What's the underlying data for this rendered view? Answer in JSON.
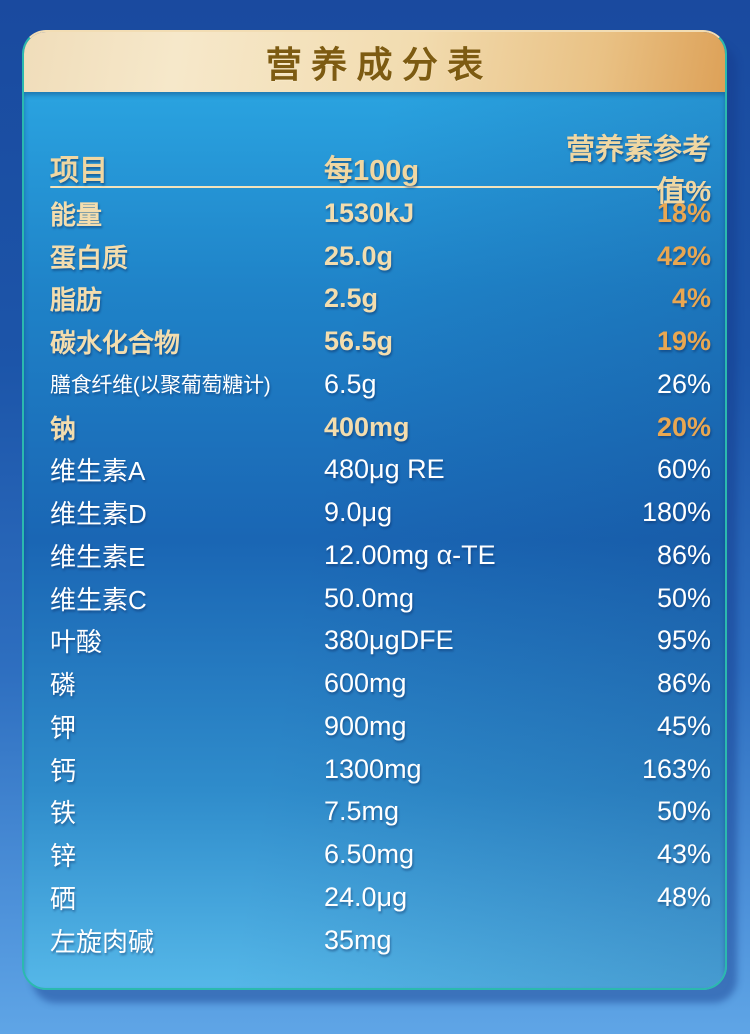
{
  "title": "营养成分表",
  "table": {
    "headers": [
      "项目",
      "每100g",
      "营养素参考值%"
    ],
    "rows": [
      {
        "name": "能量",
        "value": "1530kJ",
        "nrv": "18%",
        "highlight": true
      },
      {
        "name": "蛋白质",
        "value": "25.0g",
        "nrv": "42%",
        "highlight": true
      },
      {
        "name": "脂肪",
        "value": "2.5g",
        "nrv": "4%",
        "highlight": true
      },
      {
        "name": "碳水化合物",
        "value": "56.5g",
        "nrv": "19%",
        "highlight": true
      },
      {
        "name": "膳食纤维(以聚葡萄糖计)",
        "value": "6.5g",
        "nrv": "26%",
        "highlight": false
      },
      {
        "name": "钠",
        "value": "400mg",
        "nrv": "20%",
        "highlight": true
      },
      {
        "name": "维生素A",
        "value": "480μg RE",
        "nrv": "60%",
        "highlight": false
      },
      {
        "name": "维生素D",
        "value": "9.0μg",
        "nrv": "180%",
        "highlight": false
      },
      {
        "name": "维生素E",
        "value": "12.00mg α-TE",
        "nrv": "86%",
        "highlight": false
      },
      {
        "name": "维生素C",
        "value": "50.0mg",
        "nrv": "50%",
        "highlight": false
      },
      {
        "name": "叶酸",
        "value": "380μgDFE",
        "nrv": "95%",
        "highlight": false
      },
      {
        "name": "磷",
        "value": "600mg",
        "nrv": "86%",
        "highlight": false
      },
      {
        "name": "钾",
        "value": "900mg",
        "nrv": "45%",
        "highlight": false
      },
      {
        "name": "钙",
        "value": "1300mg",
        "nrv": "163%",
        "highlight": false
      },
      {
        "name": "铁",
        "value": "7.5mg",
        "nrv": "50%",
        "highlight": false
      },
      {
        "name": "锌",
        "value": "6.50mg",
        "nrv": "43%",
        "highlight": false
      },
      {
        "name": "硒",
        "value": "24.0μg",
        "nrv": "48%",
        "highlight": false
      },
      {
        "name": "左旋肉碱",
        "value": "35mg",
        "nrv": "",
        "highlight": false
      }
    ]
  },
  "colors": {
    "outer_background_top": "#1a4a9f",
    "outer_background_bottom": "#5fa5e6",
    "card_body_top": "#2aa3e0",
    "card_body_middle": "#1a66b4",
    "card_body_bottom": "#55b7e8",
    "card_edge_teal": "#2bb9ae",
    "header_band_light": "#f6e8ca",
    "header_band_dark": "#dda158",
    "title_brown": "#7d5b12",
    "header_gold": "#f0d7a2",
    "row_gold_text": "#f3ddae",
    "row_gold_percent": "#e9a751",
    "row_white_text": "#ffffff",
    "separator_gold": "#f3e3bb"
  }
}
